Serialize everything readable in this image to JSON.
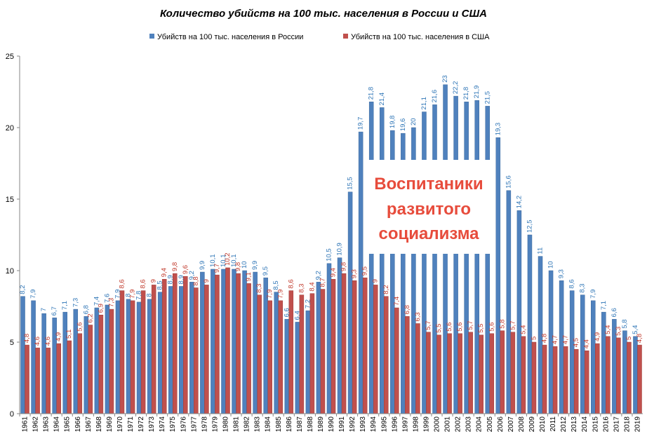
{
  "chart_data": {
    "type": "bar",
    "title": "Количество убийств на 100 тыс. населения в России и США",
    "legend_position": "top",
    "ylim": [
      0,
      25
    ],
    "yticks": [
      "0",
      "5",
      "10",
      "15",
      "20",
      "25"
    ],
    "grid": false,
    "categories": [
      "1961",
      "1962",
      "1963",
      "1964",
      "1965",
      "1966",
      "1967",
      "1968",
      "1969",
      "1970",
      "1971",
      "1972",
      "1973",
      "1974",
      "1975",
      "1976",
      "1977",
      "1978",
      "1979",
      "1980",
      "1981",
      "1982",
      "1983",
      "1984",
      "1985",
      "1986",
      "1987",
      "1988",
      "1989",
      "1990",
      "1991",
      "1992",
      "1993",
      "1994",
      "1995",
      "1996",
      "1997",
      "1998",
      "1999",
      "2000",
      "2001",
      "2002",
      "2003",
      "2004",
      "2005",
      "2006",
      "2007",
      "2008",
      "2009",
      "2010",
      "2011",
      "2012",
      "2013",
      "2014",
      "2015",
      "2016",
      "2017",
      "2018",
      "2019"
    ],
    "series": [
      {
        "name": "Убийств на 100 тыс. населения в России",
        "color": "#4f81bd",
        "values": [
          8.2,
          7.9,
          7,
          6.7,
          7.1,
          7.3,
          6.8,
          7.4,
          7.6,
          7.9,
          8,
          7.8,
          8,
          8.5,
          8.9,
          8.9,
          9.2,
          9.9,
          10.1,
          10.1,
          10.1,
          10,
          9.9,
          9.5,
          8.5,
          6.6,
          6.4,
          7.2,
          9.2,
          10.5,
          10.9,
          15.5,
          19.7,
          21.8,
          21.4,
          19.8,
          19.6,
          20,
          21.1,
          21.6,
          23,
          22.2,
          21.8,
          21.9,
          21.5,
          19.3,
          15.6,
          14.2,
          12.5,
          11,
          10,
          9.3,
          8.6,
          8.3,
          7.9,
          7.1,
          6.6,
          5.8,
          5.4
        ],
        "labels": [
          "8,2",
          "7,9",
          "7",
          "6,7",
          "7,1",
          "7,3",
          "6,8",
          "7,4",
          "7,6",
          "7,9",
          "8",
          "7,8",
          "8",
          "8,5",
          "8,9",
          "8,9",
          "9,2",
          "9,9",
          "10,1",
          "10,1",
          "10,1",
          "10",
          "9,9",
          "9,5",
          "8,5",
          "6,6",
          "6,4",
          "7,2",
          "9,2",
          "10,5",
          "10,9",
          "15,5",
          "19,7",
          "21,8",
          "21,4",
          "19,8",
          "19,6",
          "20",
          "21,1",
          "21,6",
          "23",
          "22,2",
          "21,8",
          "21,9",
          "21,5",
          "19,3",
          "15,6",
          "14,2",
          "12,5",
          "11",
          "10",
          "9,3",
          "8,6",
          "8,3",
          "7,9",
          "7,1",
          "6,6",
          "5,8",
          "5,4"
        ]
      },
      {
        "name": "Убийств на 100 тыс. населения в США",
        "color": "#c0504d",
        "values": [
          4.8,
          4.6,
          4.6,
          4.9,
          5.1,
          5.6,
          6.2,
          6.9,
          7.3,
          8.6,
          7.9,
          8.6,
          9,
          9.4,
          9.8,
          9.6,
          8.8,
          9,
          9.7,
          10.2,
          9.8,
          9.1,
          8.3,
          7.9,
          7.9,
          8.6,
          8.3,
          8.4,
          8.7,
          9.4,
          9.8,
          9.3,
          9.5,
          9,
          8.2,
          7.4,
          6.8,
          6.3,
          5.7,
          5.5,
          5.6,
          5.6,
          5.7,
          5.5,
          5.6,
          5.8,
          5.7,
          5.4,
          5,
          4.8,
          4.7,
          4.7,
          4.5,
          4.4,
          4.9,
          5.4,
          5.3,
          5,
          4.8
        ],
        "labels": [
          "4,8",
          "4,6",
          "4,6",
          "4,9",
          "5,1",
          "5,6",
          "6,2",
          "6,9",
          "7,3",
          "8,6",
          "7,9",
          "8,6",
          "9",
          "9,4",
          "9,8",
          "9,6",
          "8,8",
          "9",
          "9,7",
          "10,2",
          "9,8",
          "9,1",
          "8,3",
          "7,9",
          "7,9",
          "8,6",
          "8,3",
          "8,4",
          "8,7",
          "9,4",
          "9,8",
          "9,3",
          "9,5",
          "9",
          "8,2",
          "7,4",
          "6,8",
          "6,3",
          "5,7",
          "5,5",
          "5,6",
          "5,6",
          "5,7",
          "5,5",
          "5,6",
          "5,8",
          "5,7",
          "5,4",
          "5",
          "4,8",
          "4,7",
          "4,7",
          "4,5",
          "4,4",
          "4,9",
          "5,4",
          "5,3",
          "5",
          "4,8"
        ]
      }
    ],
    "annotation": {
      "lines": [
        "Воспитаники",
        "развитого",
        "социализма"
      ],
      "color": "#e74c3c"
    }
  }
}
